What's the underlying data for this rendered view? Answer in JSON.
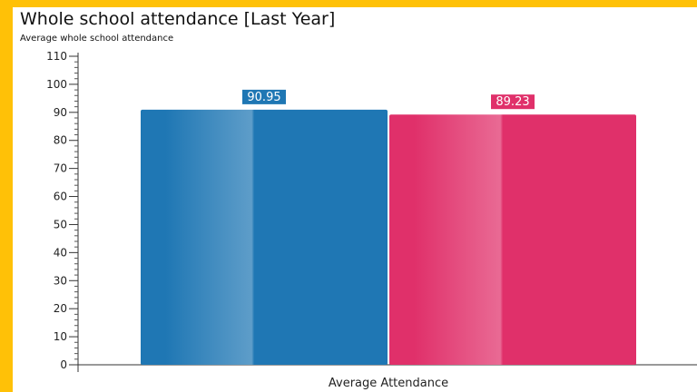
{
  "chart_data": {
    "type": "bar",
    "title": "Whole school attendance [Last Year]",
    "subtitle": "Average whole school attendance",
    "categories": [
      "Average Attendance"
    ],
    "series": [
      {
        "values": [
          90.95
        ],
        "color": "#1f77b4",
        "label": "90.95"
      },
      {
        "values": [
          89.23
        ],
        "color": "#e0306a",
        "label": "89.23"
      }
    ],
    "ylim": [
      0,
      110
    ],
    "yticks": [
      "0",
      "10",
      "20",
      "30",
      "40",
      "50",
      "60",
      "70",
      "80",
      "90",
      "100",
      "110"
    ],
    "grid": false,
    "legend": "none"
  }
}
